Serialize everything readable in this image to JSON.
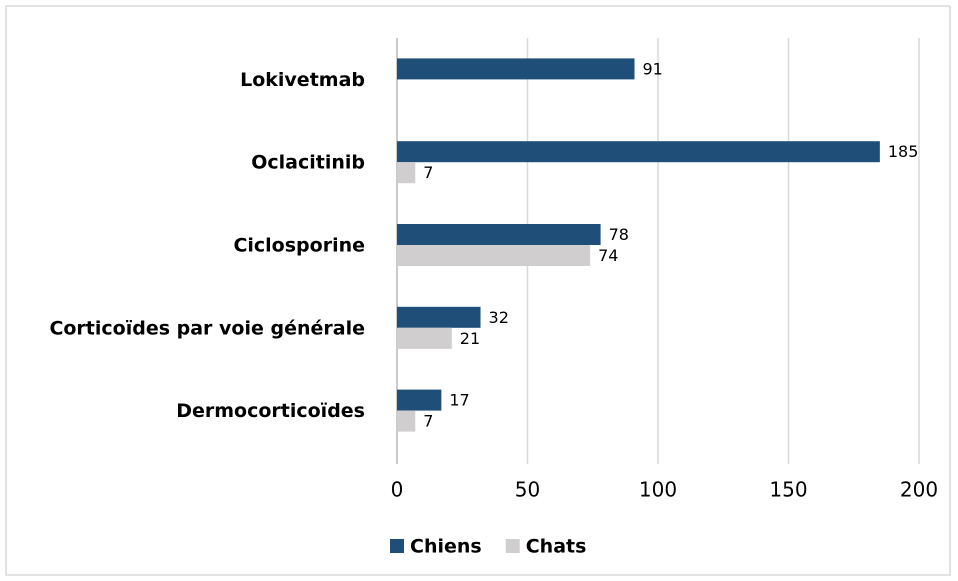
{
  "chart_data": {
    "type": "bar",
    "orientation": "horizontal",
    "categories": [
      "Lokivetmab",
      "Oclacitinib",
      "Ciclosporine",
      "Corticoïdes par voie générale",
      "Dermocorticoïdes"
    ],
    "series": [
      {
        "name": "Chiens",
        "color": "#1f4e79",
        "values": [
          91,
          185,
          78,
          32,
          17
        ]
      },
      {
        "name": "Chats",
        "color": "#d0cece",
        "values": [
          null,
          7,
          74,
          21,
          7
        ]
      }
    ],
    "xlim": [
      0,
      200
    ],
    "xticks": [
      0,
      50,
      100,
      150,
      200
    ],
    "grid": true,
    "legend": "bottom"
  }
}
